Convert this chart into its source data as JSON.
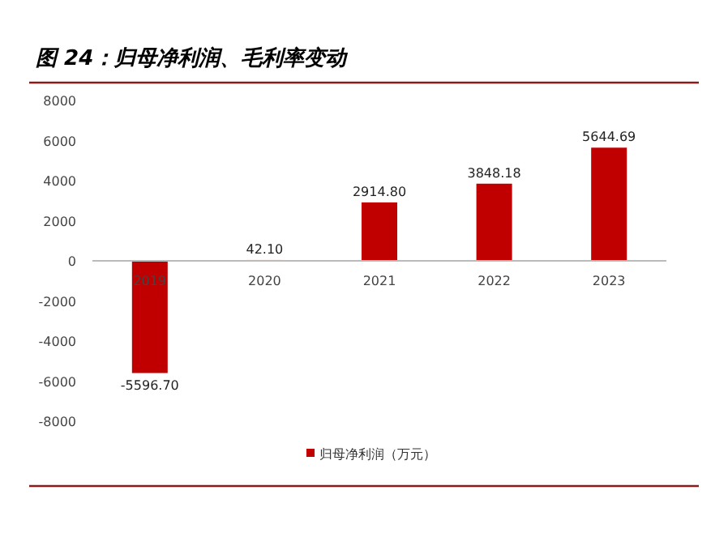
{
  "chart_data": {
    "type": "bar",
    "title": "图 24：归母净利润、毛利率变动",
    "categories": [
      "2019",
      "2020",
      "2021",
      "2022",
      "2023"
    ],
    "series": [
      {
        "name": "归母净利润（万元）",
        "color": "#c00000",
        "values": [
          -5596.7,
          42.1,
          2914.8,
          3848.18,
          5644.69
        ],
        "value_labels": [
          "-5596.70",
          "42.10",
          "2914.80",
          "3848.18",
          "5644.69"
        ]
      }
    ],
    "ylim": [
      -8000,
      8000
    ],
    "yticks": [
      -8000,
      -6000,
      -4000,
      -2000,
      0,
      2000,
      4000,
      6000,
      8000
    ],
    "legend": "bottom"
  }
}
